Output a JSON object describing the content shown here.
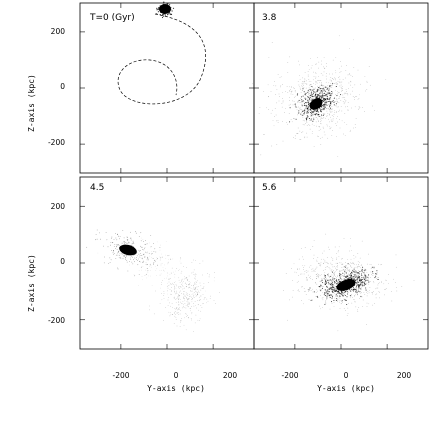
{
  "chart_data": [
    {
      "type": "scatter",
      "panel_label": "T=0 (Gyr)",
      "inset_label_visible": false,
      "xlim": [
        -300,
        300
      ],
      "ylim": [
        -300,
        300
      ],
      "xticks": [],
      "yticks": [
        "200",
        "0",
        "-200"
      ],
      "xlabel": "",
      "ylabel": "Z-axis (kpc)",
      "features": [
        "compact disk galaxy near top center",
        "dashed orbit trajectory curving right and down"
      ]
    },
    {
      "type": "scatter",
      "panel_label": "3.8",
      "xlim": [
        -300,
        300
      ],
      "ylim": [
        -300,
        300
      ],
      "xticks": [],
      "yticks": [],
      "xlabel": "",
      "ylabel": "",
      "features": [
        "merged dense core with diffuse halo"
      ]
    },
    {
      "type": "scatter",
      "panel_label": "4.5",
      "xlim": [
        -300,
        300
      ],
      "ylim": [
        -300,
        300
      ],
      "xticks": [
        "-200",
        "0",
        "200"
      ],
      "yticks": [
        "200",
        "0",
        "-200"
      ],
      "xlabel": "Y-axis (kpc)",
      "ylabel": "Z-axis (kpc)",
      "features": [
        "dense core upper left",
        "diffuse stream lower right"
      ]
    },
    {
      "type": "scatter",
      "panel_label": "5.6",
      "xlim": [
        -300,
        300
      ],
      "ylim": [
        -300,
        300
      ],
      "xticks": [
        "-200",
        "0",
        "200"
      ],
      "yticks": [],
      "xlabel": "Y-axis (kpc)",
      "ylabel": "",
      "features": [
        "elongated dense remnant with faint shell"
      ]
    }
  ]
}
